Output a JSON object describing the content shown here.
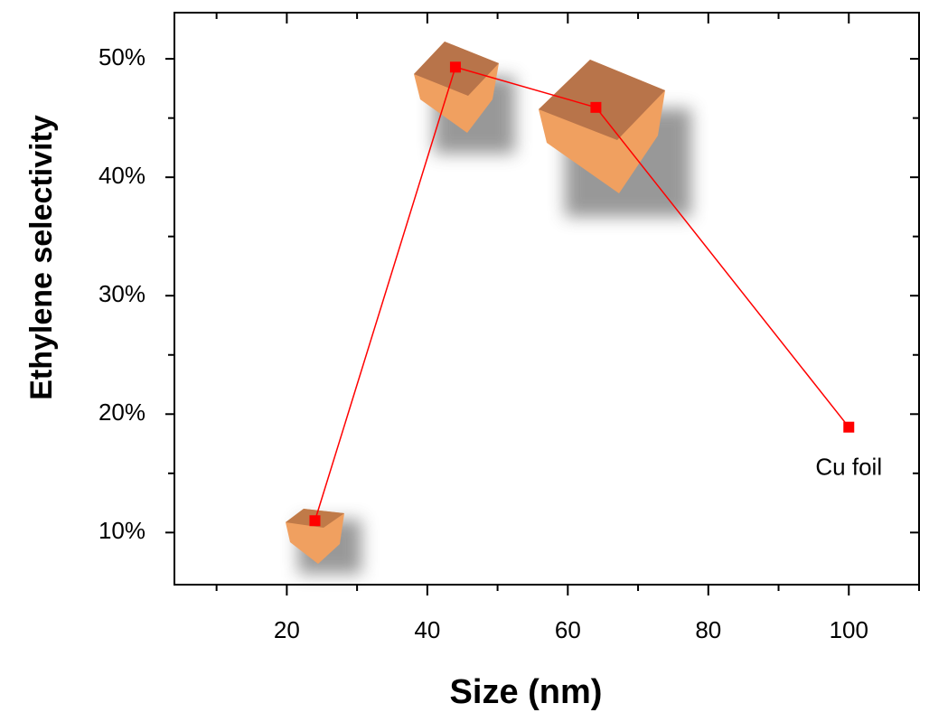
{
  "chart_data": {
    "type": "line",
    "x_label": "Size (nm)",
    "y_label": "Ethylene selectivity",
    "x": [
      24,
      44,
      64,
      100
    ],
    "series": [
      {
        "name": "Ethylene selectivity",
        "color": "#ff0000",
        "values": [
          11.0,
          49.3,
          45.9,
          18.9
        ]
      }
    ],
    "annotations": [
      {
        "text": "Cu foil",
        "x": 100,
        "y": 18.9
      }
    ],
    "xlim": [
      4,
      110
    ],
    "xticks": [
      20,
      40,
      60,
      80,
      100
    ],
    "xminorticks": [
      10,
      30,
      50,
      70,
      90,
      110
    ],
    "ylim": [
      5.6,
      53.9
    ],
    "yticks": [
      {
        "value": 10,
        "label": "10%"
      },
      {
        "value": 20,
        "label": "20%"
      },
      {
        "value": 30,
        "label": "30%"
      },
      {
        "value": 40,
        "label": "40%"
      },
      {
        "value": 50,
        "label": "50%"
      }
    ],
    "yminorticks": [
      15,
      25,
      35,
      45
    ],
    "axis_label_color": "#ff0000"
  }
}
